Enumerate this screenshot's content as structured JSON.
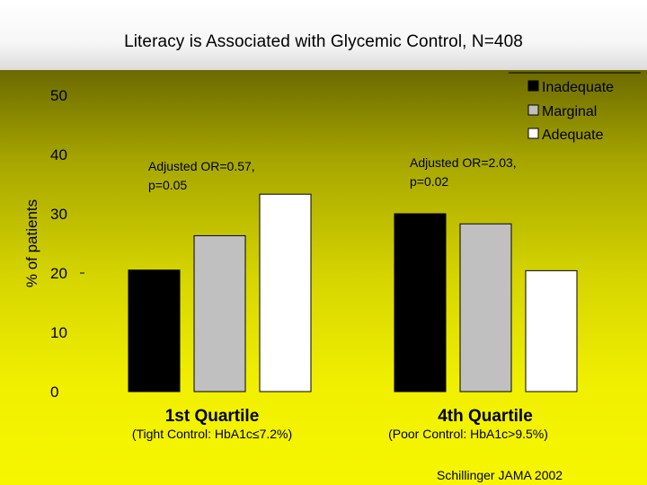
{
  "slide": {
    "title": "Literacy is Associated with Glycemic Control, N=408",
    "source": "Schillinger JAMA 2002"
  },
  "colors": {
    "Inadequate": "#000000",
    "Marginal": "#c0c0c0",
    "Adequate": "#ffffff"
  },
  "chart_data": {
    "type": "bar",
    "title": "",
    "ylabel": "% of patients",
    "xlabel": "",
    "ylim": [
      0,
      50
    ],
    "yticks": [
      "0",
      "10",
      "20",
      "30",
      "40",
      "50"
    ],
    "categories": [
      "1st Quartile",
      "4th Quartile"
    ],
    "subcategories": [
      "(Tight Control: HbA1c≤7.2%)",
      "(Poor Control: HbA1c>9.5%)"
    ],
    "series": [
      {
        "name": "Inadequate",
        "values": [
          20.5,
          30
        ]
      },
      {
        "name": "Marginal",
        "values": [
          26.3,
          28.3
        ]
      },
      {
        "name": "Adequate",
        "values": [
          33.3,
          20.4
        ]
      }
    ],
    "annotations": [
      {
        "line1": "Adjusted OR=0.57,",
        "line2": "p=0.05"
      },
      {
        "line1": "Adjusted OR=2.03,",
        "line2": "p=0.02"
      }
    ],
    "legend_position": "top-right"
  }
}
